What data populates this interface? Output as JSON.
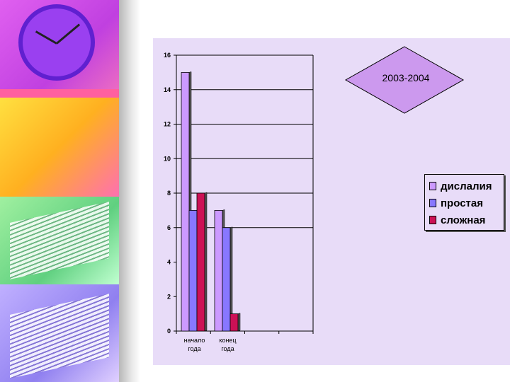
{
  "chart_data": {
    "type": "bar",
    "title": "2003-2004",
    "categories": [
      "начало года",
      "конец года"
    ],
    "category_lines": [
      [
        "начало",
        "года"
      ],
      [
        "конец",
        "года"
      ]
    ],
    "series": [
      {
        "name": "дислалия",
        "values": [
          15,
          7
        ],
        "color": "#cc99ff"
      },
      {
        "name": "простая",
        "values": [
          7,
          6
        ],
        "color": "#8877ff"
      },
      {
        "name": "сложная",
        "values": [
          8,
          1
        ],
        "color": "#cc1155"
      }
    ],
    "ylim": [
      0,
      16
    ],
    "yticks": [
      0,
      2,
      4,
      6,
      8,
      10,
      12,
      14,
      16
    ],
    "gridlines": [
      6,
      8,
      10,
      12,
      14
    ],
    "legend": "right"
  }
}
